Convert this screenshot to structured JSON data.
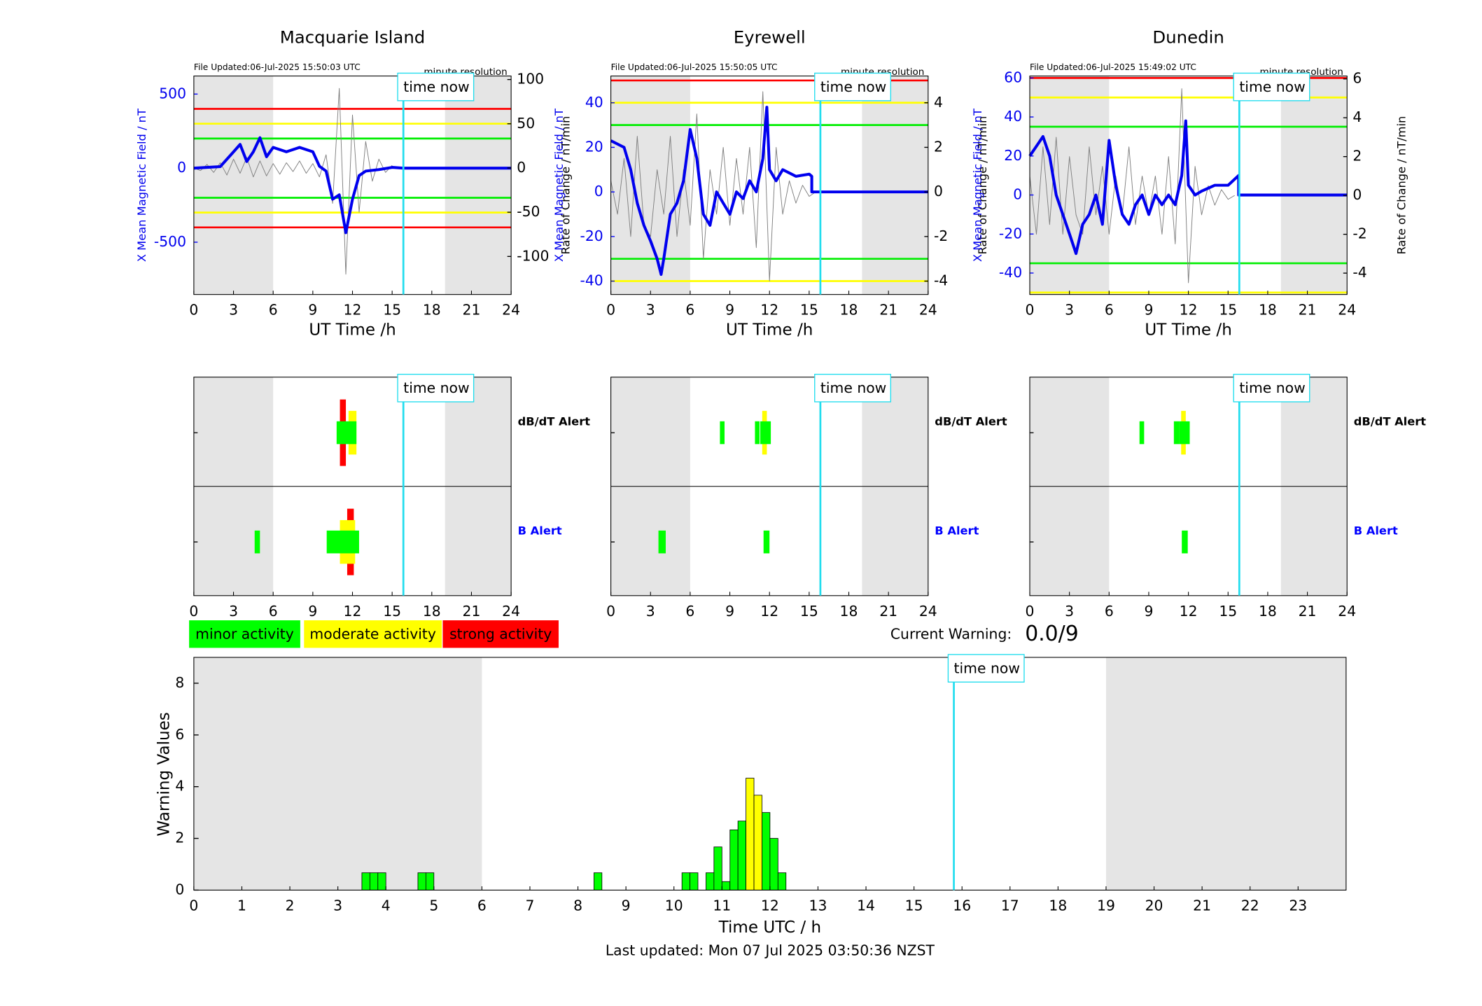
{
  "chart_data": [
    {
      "type": "line",
      "title": "Macquarie Island",
      "file_updated": "File Updated:06-Jul-2025 15:50:03 UTC",
      "resolution": "minute resolution",
      "ylabel": "X Mean Magnetic Field / nT",
      "y2label": "Rate of Change / nT/min",
      "xlabel": "UT Time /h",
      "xlim": [
        0,
        24
      ],
      "xticks": [
        0,
        3,
        6,
        9,
        12,
        15,
        18,
        21,
        24
      ],
      "ylim": [
        -853,
        622
      ],
      "yticks": [
        -500,
        0,
        500
      ],
      "y2lim": [
        -143,
        104
      ],
      "y2ticks": [
        -100,
        -50,
        0,
        50,
        100
      ],
      "thresholds": [
        {
          "color": "#ff0000",
          "value": 400
        },
        {
          "color": "#ffff00",
          "value": 300
        },
        {
          "color": "#00ee00",
          "value": 200
        },
        {
          "color": "#00ee00",
          "value": -200
        },
        {
          "color": "#ffff00",
          "value": -300
        },
        {
          "color": "#ff0000",
          "value": -400
        }
      ],
      "shaded": [
        [
          0,
          6
        ],
        [
          19,
          24
        ]
      ],
      "time_now": {
        "label": "time now",
        "x": 15.85
      },
      "series": [
        {
          "color": "#808080",
          "axis": "y2",
          "x": [
            0,
            0.5,
            1,
            1.5,
            2,
            2.5,
            3,
            3.5,
            4,
            4.5,
            5,
            5.5,
            6,
            6.5,
            7,
            7.5,
            8,
            8.5,
            9,
            9.5,
            10,
            10.5,
            11,
            11.5,
            12,
            12.5,
            13,
            13.5,
            14,
            14.5,
            15
          ],
          "values": [
            0,
            -3,
            4,
            -5,
            6,
            -8,
            10,
            -6,
            12,
            -10,
            8,
            -9,
            5,
            -7,
            6,
            -4,
            8,
            -6,
            5,
            -10,
            15,
            -40,
            90,
            -120,
            60,
            -50,
            30,
            -15,
            10,
            -5,
            3
          ]
        },
        {
          "color": "#0000ee",
          "x": [
            0,
            2,
            3,
            3.5,
            4,
            4.5,
            5,
            5.5,
            6,
            7,
            8,
            9,
            9.5,
            10,
            10.5,
            11,
            11.5,
            12,
            12.5,
            13,
            14,
            15,
            15.85,
            24
          ],
          "values": [
            0,
            10,
            110,
            160,
            45,
            110,
            205,
            77,
            140,
            110,
            140,
            110,
            13,
            -20,
            -210,
            -180,
            -436,
            -210,
            -50,
            -20,
            -10,
            5,
            0,
            0
          ]
        }
      ]
    },
    {
      "type": "line",
      "title": "Eyrewell",
      "file_updated": "File Updated:06-Jul-2025 15:50:05 UTC",
      "resolution": "minute resolution",
      "ylabel": "X Mean Magnetic Field / nT",
      "y2label": "Rate of Change / nT/min",
      "xlabel": "UT Time /h",
      "xlim": [
        0,
        24
      ],
      "xticks": [
        0,
        3,
        6,
        9,
        12,
        15,
        18,
        21,
        24
      ],
      "ylim": [
        -46,
        52
      ],
      "yticks": [
        -40,
        -20,
        0,
        20,
        40
      ],
      "y2lim": [
        -4.6,
        5.2
      ],
      "y2ticks": [
        -4,
        -2,
        0,
        2,
        4
      ],
      "thresholds": [
        {
          "color": "#ff0000",
          "value": 50
        },
        {
          "color": "#ffff00",
          "value": 40
        },
        {
          "color": "#00ee00",
          "value": 30
        },
        {
          "color": "#00ee00",
          "value": -30
        },
        {
          "color": "#ffff00",
          "value": -40
        }
      ],
      "shaded": [
        [
          0,
          6
        ],
        [
          19,
          24
        ]
      ],
      "time_now": {
        "label": "time now",
        "x": 15.85
      },
      "series": [
        {
          "color": "#808080",
          "axis": "y2",
          "x": [
            0,
            0.5,
            1,
            1.5,
            2,
            2.5,
            3,
            3.5,
            4,
            4.5,
            5,
            5.5,
            6,
            6.5,
            7,
            7.5,
            8,
            8.5,
            9,
            9.5,
            10,
            10.5,
            11,
            11.5,
            12,
            12.5,
            13,
            13.5,
            14,
            14.5,
            15,
            15.5
          ],
          "values": [
            0.5,
            -1,
            1.5,
            -2,
            2.5,
            -1.5,
            -2,
            1,
            -1,
            2.5,
            -2,
            1,
            -1.5,
            3.5,
            -3,
            1,
            -1,
            2,
            -1.5,
            1.5,
            -1,
            2,
            -2.5,
            4.5,
            -4,
            2,
            -1,
            0.5,
            -0.5,
            0.3,
            -0.2,
            0
          ]
        },
        {
          "color": "#0000ee",
          "x": [
            0,
            1,
            1.5,
            2,
            2.5,
            3,
            3.5,
            3.8,
            4,
            4.5,
            5,
            5.5,
            6,
            6.5,
            7,
            7.5,
            8,
            8.5,
            9,
            9.5,
            10,
            10.5,
            11,
            11.5,
            11.8,
            12,
            12.5,
            13,
            14,
            15,
            15.2,
            15.2,
            24
          ],
          "values": [
            23,
            20,
            10,
            -5,
            -15,
            -22,
            -30,
            -37,
            -30,
            -10,
            -5,
            5,
            28,
            15,
            -10,
            -15,
            0,
            -5,
            -10,
            0,
            -3,
            5,
            0,
            15,
            38,
            10,
            5,
            10,
            7,
            8,
            7,
            0,
            0
          ]
        }
      ]
    },
    {
      "type": "line",
      "title": "Dunedin",
      "file_updated": "File Updated:06-Jul-2025 15:49:02 UTC",
      "resolution": "minute resolution",
      "ylabel": "X Mean Magnetic Field / nT",
      "y2label": "Rate of Change / nT/min",
      "xlabel": "UT Time /h",
      "xlim": [
        0,
        24
      ],
      "xticks": [
        0,
        3,
        6,
        9,
        12,
        15,
        18,
        21,
        24
      ],
      "ylim": [
        -51,
        61
      ],
      "yticks": [
        -40,
        -20,
        0,
        20,
        40,
        60
      ],
      "y2lim": [
        -5.1,
        6.15
      ],
      "y2ticks": [
        -4,
        -2,
        0,
        2,
        4,
        6
      ],
      "thresholds": [
        {
          "color": "#ff0000",
          "value": 60
        },
        {
          "color": "#ffff00",
          "value": 50
        },
        {
          "color": "#00ee00",
          "value": 35
        },
        {
          "color": "#00ee00",
          "value": -35
        },
        {
          "color": "#ffff00",
          "value": -50
        }
      ],
      "shaded": [
        [
          0,
          6
        ],
        [
          19,
          24
        ]
      ],
      "time_now": {
        "label": "time now",
        "x": 15.85
      },
      "series": [
        {
          "color": "#808080",
          "axis": "y2",
          "x": [
            0,
            0.5,
            1,
            1.5,
            2,
            2.5,
            3,
            3.5,
            4,
            4.5,
            5,
            5.5,
            6,
            6.5,
            7,
            7.5,
            8,
            8.5,
            9,
            9.5,
            10,
            10.5,
            11,
            11.5,
            12,
            12.5,
            13,
            13.5,
            14,
            14.5,
            15,
            15.5
          ],
          "values": [
            1,
            -2,
            2.5,
            -1.5,
            3,
            -2,
            2,
            -1,
            -2,
            2.5,
            -1,
            1.5,
            -2,
            1,
            -1,
            2.5,
            -1.5,
            1,
            -1,
            1,
            -2,
            2,
            -2.5,
            5.5,
            -4.5,
            1.5,
            -1,
            0.5,
            -0.5,
            0.3,
            -0.2,
            0
          ]
        },
        {
          "color": "#0000ee",
          "x": [
            0,
            0.5,
            1,
            1.5,
            2,
            2.5,
            3,
            3.5,
            4,
            4.5,
            5,
            5.5,
            6,
            6.5,
            7,
            7.5,
            8,
            8.5,
            9,
            9.5,
            10,
            10.5,
            11,
            11.5,
            11.8,
            12,
            12.5,
            13,
            14,
            15,
            15.8,
            15.8,
            24
          ],
          "values": [
            20,
            25,
            30,
            20,
            0,
            -10,
            -20,
            -30,
            -15,
            -10,
            0,
            -15,
            28,
            5,
            -10,
            -15,
            -5,
            0,
            -10,
            0,
            -5,
            0,
            -5,
            10,
            38,
            5,
            0,
            2,
            5,
            5,
            10,
            0,
            0
          ]
        }
      ]
    },
    {
      "type": "alert",
      "xlim": [
        0,
        24
      ],
      "xticks": [
        0,
        3,
        6,
        9,
        12,
        15,
        18,
        21,
        24
      ],
      "shaded": [
        [
          0,
          6
        ],
        [
          19,
          24
        ]
      ],
      "time_now": {
        "label": "time now",
        "x": 15.85
      },
      "rows": [
        {
          "name": "dB/dT Alert",
          "color": "#000000",
          "minor": [
            [
              10.8,
              12.3
            ]
          ],
          "moderate": [
            [
              11.7,
              12.3
            ]
          ],
          "strong": [
            [
              11.05,
              11.5
            ]
          ]
        },
        {
          "name": "B Alert",
          "color": "#0000ff",
          "minor": [
            [
              4.6,
              5.0
            ],
            [
              10.05,
              12.5
            ]
          ],
          "moderate": [
            [
              11.05,
              12.2
            ]
          ],
          "strong": [
            [
              11.6,
              12.1
            ]
          ]
        }
      ]
    },
    {
      "type": "alert",
      "xlim": [
        0,
        24
      ],
      "xticks": [
        0,
        3,
        6,
        9,
        12,
        15,
        18,
        21,
        24
      ],
      "shaded": [
        [
          0,
          6
        ],
        [
          19,
          24
        ]
      ],
      "time_now": {
        "label": "time now",
        "x": 15.85
      },
      "rows": [
        {
          "name": "dB/dT Alert",
          "color": "#000000",
          "minor": [
            [
              8.25,
              8.6
            ],
            [
              10.9,
              11.25
            ],
            [
              11.3,
              12.1
            ]
          ],
          "moderate": [
            [
              11.45,
              11.8
            ]
          ],
          "strong": []
        },
        {
          "name": "B Alert",
          "color": "#0000ff",
          "minor": [
            [
              3.6,
              4.15
            ],
            [
              11.55,
              12.0
            ]
          ],
          "moderate": [],
          "strong": []
        }
      ]
    },
    {
      "type": "alert",
      "xlim": [
        0,
        24
      ],
      "xticks": [
        0,
        3,
        6,
        9,
        12,
        15,
        18,
        21,
        24
      ],
      "shaded": [
        [
          0,
          6
        ],
        [
          19,
          24
        ]
      ],
      "time_now": {
        "label": "time now",
        "x": 15.85
      },
      "rows": [
        {
          "name": "dB/dT Alert",
          "color": "#000000",
          "minor": [
            [
              8.3,
              8.65
            ],
            [
              10.9,
              11.3
            ],
            [
              11.3,
              12.1
            ]
          ],
          "moderate": [
            [
              11.45,
              11.8
            ]
          ],
          "strong": []
        },
        {
          "name": "B Alert",
          "color": "#0000ff",
          "minor": [
            [
              11.5,
              11.95
            ]
          ],
          "moderate": [],
          "strong": []
        }
      ]
    },
    {
      "type": "bar",
      "xlabel": "Time UTC / h",
      "ylabel": "Warning Values",
      "footer": "Last updated: Mon 07 Jul 2025 03:50:36 NZST",
      "current_warning_label": "Current Warning:",
      "current_warning": "0.0/9",
      "xlim": [
        0,
        24
      ],
      "xticks": [
        0,
        1,
        2,
        3,
        4,
        5,
        6,
        7,
        8,
        9,
        10,
        11,
        12,
        13,
        14,
        15,
        16,
        17,
        18,
        19,
        20,
        21,
        22,
        23
      ],
      "ylim": [
        0,
        9
      ],
      "yticks": [
        0,
        2,
        4,
        6,
        8
      ],
      "shaded": [
        [
          0,
          6
        ],
        [
          19,
          24
        ]
      ],
      "time_now": {
        "label": "time now",
        "x": 15.83
      },
      "series": [
        {
          "name": "minor activity",
          "color": "#00ff00",
          "x": [
            3.5,
            3.667,
            3.833,
            4.667,
            4.833,
            8.333,
            10.167,
            10.333,
            10.667,
            10.833,
            11.0,
            11.167,
            11.333,
            11.833,
            12.0,
            12.167
          ],
          "values": [
            0.67,
            0.67,
            0.67,
            0.67,
            0.67,
            0.67,
            0.67,
            0.67,
            0.67,
            1.67,
            0.33,
            2.33,
            2.67,
            3,
            2,
            0.67
          ]
        },
        {
          "name": "moderate activity",
          "color": "#ffff00",
          "x": [
            11.5,
            11.667
          ],
          "values": [
            4.33,
            3.67
          ]
        },
        {
          "name": "strong activity",
          "color": "#ff0000",
          "x": [],
          "values": []
        }
      ]
    }
  ]
}
